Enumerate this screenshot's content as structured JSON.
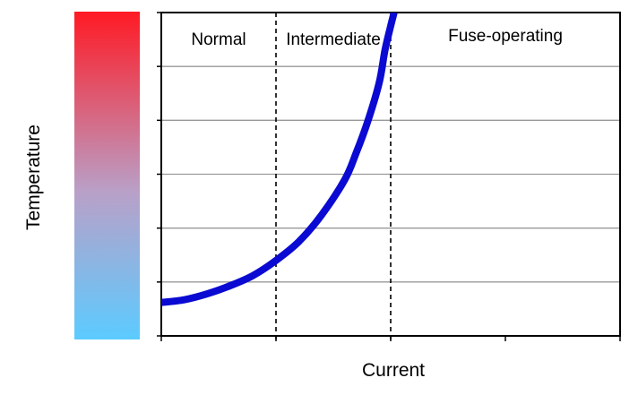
{
  "chart_data": {
    "type": "line",
    "title": "",
    "xlabel": "Current",
    "ylabel": "Temperature",
    "xlim": [
      0,
      4
    ],
    "ylim": [
      0,
      6
    ],
    "grid": {
      "horizontal": true,
      "vertical": false
    },
    "x_ticks": [
      0,
      1,
      2,
      3,
      4
    ],
    "y_ticks": [
      0,
      1,
      2,
      3,
      4,
      5,
      6
    ],
    "series": [
      {
        "color": "#0a0ad2",
        "x": [
          0,
          0.2,
          0.4,
          0.6,
          0.8,
          1.0,
          1.2,
          1.4,
          1.6,
          1.7,
          1.8,
          1.9,
          1.95,
          2.0,
          2.03
        ],
        "y": [
          0.62,
          0.67,
          0.78,
          0.93,
          1.12,
          1.4,
          1.75,
          2.25,
          2.9,
          3.4,
          3.98,
          4.7,
          5.3,
          5.75,
          6.0
        ]
      }
    ],
    "regions": [
      {
        "label": "Normal",
        "from": 0,
        "to": 1
      },
      {
        "label": "Intermediate",
        "from": 1,
        "to": 2
      },
      {
        "label": "Fuse-operating",
        "from": 2,
        "to": 4
      }
    ],
    "dividers": [
      1,
      2
    ],
    "colorbar": {
      "top_color": "#ff1a24",
      "mid_color": "#b9a0c8",
      "bottom_color": "#5ccbff"
    }
  }
}
